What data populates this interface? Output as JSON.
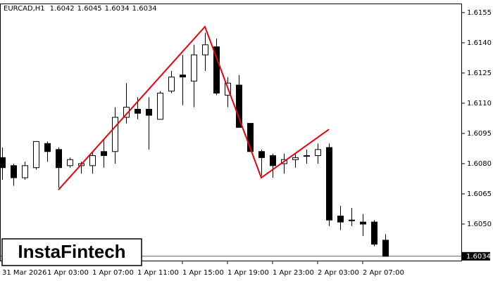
{
  "chart_data": {
    "type": "candlestick",
    "symbol": "EURCAD,H1",
    "header_ohlc": [
      1.6042,
      1.6045,
      1.6034,
      1.6034
    ],
    "categories": [
      "31 Mar 2026",
      null,
      null,
      null,
      "1 Apr 03:00",
      null,
      null,
      null,
      "1 Apr 07:00",
      null,
      null,
      null,
      "1 Apr 11:00",
      null,
      null,
      null,
      "1 Apr 15:00",
      null,
      null,
      null,
      "1 Apr 19:00",
      null,
      null,
      null,
      "1 Apr 23:00",
      null,
      null,
      null,
      "2 Apr 03:00",
      null,
      null,
      null,
      "2 Apr 07:00",
      null,
      null
    ],
    "open": [
      1.6083,
      1.6079,
      1.6073,
      1.6078,
      1.609,
      1.6087,
      1.6079,
      1.6079,
      1.6079,
      1.6086,
      1.6086,
      1.6103,
      1.6107,
      1.6107,
      1.6102,
      1.6116,
      1.6124,
      1.6121,
      1.6134,
      1.6138,
      1.6114,
      1.6119,
      1.61,
      1.6086,
      1.6084,
      1.608,
      1.6082,
      1.6084,
      1.6084,
      1.6088,
      1.6054,
      1.6052,
      1.6051,
      1.6051,
      1.6042
    ],
    "high": [
      1.6088,
      1.608,
      1.6081,
      1.6091,
      1.6091,
      1.6088,
      1.6083,
      1.6081,
      1.6086,
      1.6092,
      1.6108,
      1.612,
      1.6113,
      1.6113,
      1.6116,
      1.6126,
      1.6134,
      1.6139,
      1.6145,
      1.6142,
      1.6123,
      1.6124,
      1.61,
      1.6087,
      1.6085,
      1.6085,
      1.6085,
      1.6087,
      1.609,
      1.609,
      1.6059,
      1.6058,
      1.6055,
      1.6052,
      1.6045
    ],
    "low": [
      1.6072,
      1.6069,
      1.6072,
      1.6077,
      1.6081,
      1.6068,
      1.6078,
      1.6075,
      1.6075,
      1.6078,
      1.608,
      1.61,
      1.6102,
      1.6087,
      1.6102,
      1.6115,
      1.6109,
      1.6108,
      1.6126,
      1.6114,
      1.6108,
      1.6098,
      1.6086,
      1.6074,
      1.6073,
      1.6075,
      1.6078,
      1.608,
      1.608,
      1.6049,
      1.6047,
      1.6049,
      1.6044,
      1.6039,
      1.6034
    ],
    "close": [
      1.6078,
      1.6073,
      1.6079,
      1.6091,
      1.6086,
      1.6078,
      1.6082,
      1.608,
      1.6084,
      1.6084,
      1.6103,
      1.6108,
      1.6105,
      1.6104,
      1.6115,
      1.6123,
      1.6123,
      1.6134,
      1.6139,
      1.6115,
      1.612,
      1.6098,
      1.6086,
      1.6083,
      1.6079,
      1.6082,
      1.6083,
      1.6084,
      1.6087,
      1.6052,
      1.6051,
      1.6052,
      1.605,
      1.604,
      1.6034
    ],
    "up_color": "#ffffff",
    "down_color": "#000000",
    "ylim": [
      1.60315,
      1.61595
    ],
    "yticks": [
      {
        "value": 1.6155,
        "label": "1.6155"
      },
      {
        "value": 1.614,
        "label": "1.6140"
      },
      {
        "value": 1.6125,
        "label": "1.6125"
      },
      {
        "value": 1.611,
        "label": "1.6110"
      },
      {
        "value": 1.6095,
        "label": "1.6095"
      },
      {
        "value": 1.608,
        "label": "1.6080"
      },
      {
        "value": 1.6065,
        "label": "1.6065"
      },
      {
        "value": 1.605,
        "label": "1.6050"
      }
    ],
    "current_price": 1.6034,
    "pattern": {
      "color": "#e8000b",
      "x": [
        5,
        18,
        23,
        29
      ],
      "y": [
        1.6067,
        1.6148,
        1.6073,
        1.6097
      ]
    },
    "watermark": "InstaFintech"
  }
}
